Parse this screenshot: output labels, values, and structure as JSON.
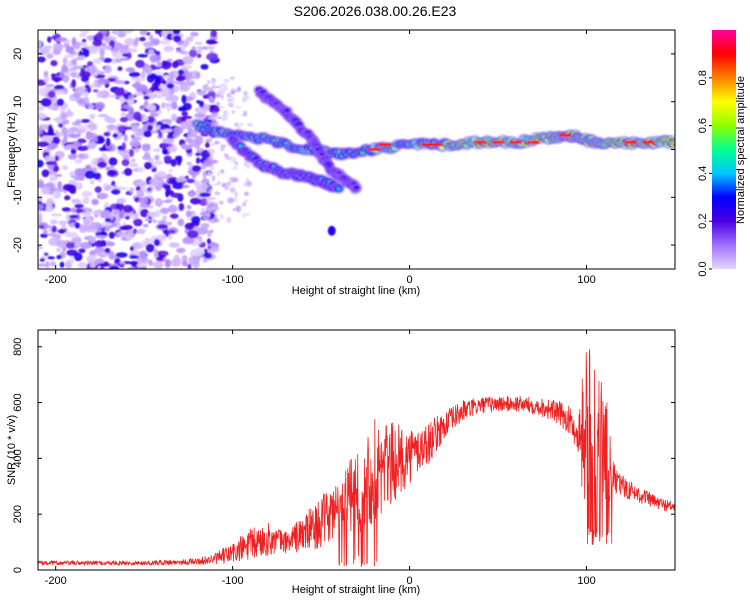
{
  "title": "S206.2026.038.00.26.E23",
  "chart_data": [
    {
      "type": "heatmap",
      "xlabel": "Height of straight line (km)",
      "ylabel": "Frequency (Hz)",
      "xlim": [
        -210,
        150
      ],
      "ylim": [
        -25,
        25
      ],
      "xticks": [
        -200,
        -100,
        0,
        100
      ],
      "yticks": [
        -20,
        -10,
        0,
        10,
        20
      ],
      "colorbar": {
        "label": "Normalized spectral amplitude",
        "range": [
          0,
          1
        ],
        "ticks": [
          0.0,
          0.2,
          0.4,
          0.6,
          0.8
        ],
        "tick_labels": [
          "0.0",
          "0.2",
          "0.4",
          "0.6",
          "0.8"
        ],
        "colors": [
          "#e6d6ff",
          "#a070ff",
          "#4a00e0",
          "#0000ff",
          "#00c8ff",
          "#00ff90",
          "#90ff00",
          "#ffff00",
          "#ff8000",
          "#ff0000",
          "#ff00a0"
        ]
      },
      "features": [
        {
          "name": "main-track",
          "points": [
            [
              -120,
              5
            ],
            [
              -100,
              3
            ],
            [
              -80,
              2
            ],
            [
              -60,
              0
            ],
            [
              -40,
              -1
            ],
            [
              -20,
              0
            ],
            [
              0,
              1
            ],
            [
              20,
              1
            ],
            [
              40,
              1.5
            ],
            [
              60,
              1.5
            ],
            [
              80,
              2.5
            ],
            [
              90,
              3
            ],
            [
              100,
              2
            ],
            [
              110,
              1
            ],
            [
              130,
              1.5
            ],
            [
              150,
              1.5
            ]
          ],
          "amplitude": 0.85
        },
        {
          "name": "upper-branch",
          "points": [
            [
              -85,
              12
            ],
            [
              -70,
              8
            ],
            [
              -55,
              2
            ],
            [
              -45,
              -4
            ],
            [
              -30,
              -8
            ]
          ],
          "amplitude": 0.35
        },
        {
          "name": "lower-branch",
          "points": [
            [
              -100,
              2
            ],
            [
              -85,
              -3
            ],
            [
              -70,
              -5
            ],
            [
              -55,
              -6
            ],
            [
              -40,
              -8
            ]
          ],
          "amplitude": 0.45
        },
        {
          "name": "isolated-blob",
          "points": [
            [
              -44,
              -17
            ]
          ],
          "amplitude": 0.3
        }
      ]
    },
    {
      "type": "line",
      "xlabel": "Height of straight line (km)",
      "ylabel": "SNR (10 * v/v)",
      "xlim": [
        -210,
        150
      ],
      "ylim": [
        0,
        860
      ],
      "xticks": [
        -200,
        -100,
        0,
        100
      ],
      "yticks": [
        0,
        200,
        400,
        600,
        800
      ],
      "color": "#ee2222",
      "x": [
        -210,
        -180,
        -150,
        -120,
        -110,
        -100,
        -90,
        -80,
        -70,
        -60,
        -50,
        -40,
        -30,
        -20,
        -10,
        0,
        10,
        20,
        30,
        40,
        50,
        60,
        70,
        80,
        90,
        95,
        100,
        105,
        110,
        115,
        120,
        130,
        140,
        150
      ],
      "y": [
        25,
        25,
        25,
        30,
        40,
        60,
        90,
        110,
        100,
        130,
        170,
        220,
        280,
        350,
        380,
        410,
        450,
        520,
        570,
        590,
        595,
        595,
        590,
        575,
        540,
        480,
        500,
        500,
        460,
        330,
        300,
        270,
        240,
        225
      ],
      "amplitude": [
        8,
        8,
        8,
        12,
        20,
        40,
        60,
        60,
        40,
        70,
        90,
        120,
        150,
        200,
        150,
        100,
        80,
        50,
        40,
        30,
        30,
        30,
        30,
        40,
        50,
        60,
        350,
        300,
        250,
        60,
        40,
        30,
        25,
        20
      ]
    }
  ]
}
